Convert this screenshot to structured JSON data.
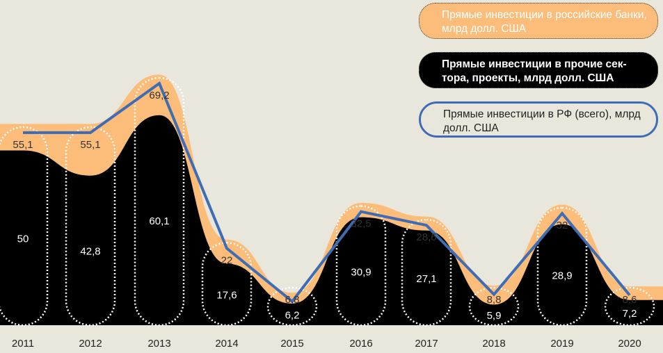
{
  "chart_data": {
    "type": "area",
    "categories": [
      "2011",
      "2012",
      "2013",
      "2014",
      "2015",
      "2016",
      "2017",
      "2018",
      "2019",
      "2020"
    ],
    "series": [
      {
        "name": "Прямые инвестиции в российские банки, млрд долл. США",
        "role": "orange-band-top",
        "color": "#fcbd7a",
        "labels": [
          "55,1",
          "55,1",
          "69,2",
          "22",
          "6,8",
          "32,5",
          "28,6",
          "8,8",
          "32",
          "8,6"
        ],
        "values": [
          55.1,
          55.1,
          69.2,
          22,
          6.8,
          32.5,
          28.6,
          8.8,
          32,
          8.6
        ]
      },
      {
        "name": "Прямые инвестиции в прочие сектора, проекты, млрд долл. США",
        "color": "#000000",
        "labels": [
          "50",
          "42,8",
          "60,1",
          "17,6",
          "6,2",
          "30,9",
          "27,1",
          "5,9",
          "28,9",
          "7,2"
        ],
        "values": [
          50,
          42.8,
          60.1,
          17.6,
          6.2,
          30.9,
          27.1,
          5.9,
          28.9,
          7.2
        ]
      },
      {
        "name": "Прямые инвестиции в РФ (всего), млрд долл. США",
        "type": "line",
        "color": "#3f6db5",
        "values": [
          55.1,
          55.1,
          69.2,
          22,
          6.8,
          32.5,
          28.6,
          8.8,
          32,
          8.6
        ]
      }
    ],
    "ylim": [
      0,
      70
    ],
    "grid": false,
    "legend_position": "top-right"
  },
  "legend": {
    "banks": "Прямые инвестиции в российские банки, млрд долл. США",
    "other": "Прямые инвестиции в прочие сек-тора, проекты, млрд долл. США",
    "total": "Прямые инвестиции в РФ (всего), млрд долл. США"
  }
}
